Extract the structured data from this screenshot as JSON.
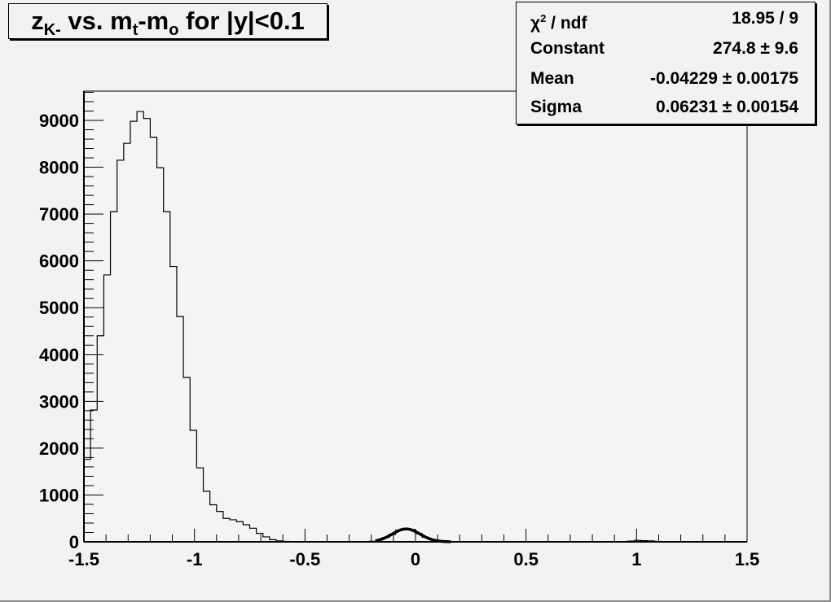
{
  "chart_data": {
    "type": "bar",
    "title_parts": {
      "z": "z",
      "zsub": "K-",
      "mid": " vs. m",
      "tsub": "t",
      "dash": "-m",
      "osub": "o",
      "rest": " for |y|<0.1"
    },
    "xlim": [
      -1.5,
      1.5
    ],
    "ylim": [
      0,
      9600
    ],
    "bin_width": 0.03,
    "x_ticks": [
      "-1.5",
      "-1",
      "-0.5",
      "0",
      "0.5",
      "1",
      "1.5"
    ],
    "x_tick_values": [
      -1.5,
      -1,
      -0.5,
      0,
      0.5,
      1,
      1.5
    ],
    "y_ticks": [
      "0",
      "1000",
      "2000",
      "3000",
      "4000",
      "5000",
      "6000",
      "7000",
      "8000",
      "9000"
    ],
    "y_tick_values": [
      0,
      1000,
      2000,
      3000,
      4000,
      5000,
      6000,
      7000,
      8000,
      9000
    ],
    "bin_values": [
      1760,
      2815,
      4400,
      5700,
      7050,
      8150,
      8510,
      8980,
      9190,
      9040,
      8640,
      7990,
      7050,
      5880,
      4810,
      3510,
      2380,
      1580,
      1080,
      790,
      650,
      500,
      470,
      430,
      365,
      290,
      180,
      105,
      45,
      20,
      10,
      5,
      2,
      1,
      0,
      0,
      0,
      0,
      0,
      0,
      0,
      0,
      0,
      12,
      41,
      92,
      158,
      245,
      270,
      258,
      176,
      98,
      50,
      15,
      6,
      2,
      0,
      0,
      0,
      0,
      0,
      0,
      0,
      0,
      0,
      0,
      0,
      0,
      0,
      0,
      0,
      0,
      0,
      0,
      0,
      0,
      0,
      0,
      0,
      0,
      0,
      3,
      15,
      30,
      25,
      20,
      10,
      3,
      0,
      0,
      0,
      0,
      0,
      0,
      0,
      0,
      0,
      0,
      0,
      0
    ],
    "fit": {
      "function": "gaus",
      "constant": 274.8,
      "mean": -0.04229,
      "sigma": 0.06231,
      "range": [
        -0.18,
        0.16
      ]
    },
    "grid": false
  },
  "stats": [
    {
      "key": "χ",
      "sup": "2",
      "key_rest": " / ndf",
      "value": "18.95 / 9"
    },
    {
      "key": "Constant",
      "value": "274.8 ± 9.6"
    },
    {
      "key": "Mean",
      "value": "-0.04229 ± 0.00175"
    },
    {
      "key": "Sigma",
      "value": "0.06231 ± 0.00154"
    }
  ]
}
